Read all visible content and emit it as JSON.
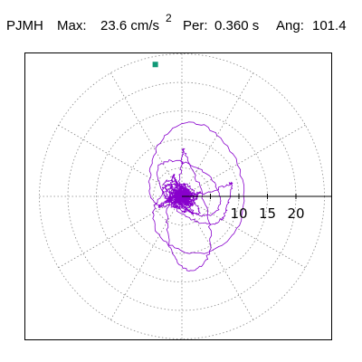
{
  "header": {
    "station": "PJMH",
    "max_label": "Max:",
    "max_value": "23.6 cm/s",
    "max_exp": "2",
    "period_label": "Per:",
    "period_value": "0.360 s",
    "angle_label": "Ang:",
    "angle_value": "101.4"
  },
  "colors": {
    "trace": "#8800cc",
    "marker": "#119977",
    "grid": "#888888",
    "axis": "#000000"
  },
  "chart_data": {
    "type": "polar-particle-motion",
    "units": "cm/s^2",
    "radial_max": 23.6,
    "radial_ticks": [
      5,
      10,
      15,
      20
    ],
    "radial_tick_labels": [
      "10",
      "15",
      "20"
    ],
    "rings": [
      5,
      10,
      15,
      20,
      25
    ],
    "spokes_deg": [
      0,
      30,
      60,
      90,
      120,
      150,
      180,
      210,
      240,
      270,
      300,
      330
    ],
    "max_point": {
      "radius": 23.6,
      "angle_deg": 101.4
    },
    "grid": true
  }
}
